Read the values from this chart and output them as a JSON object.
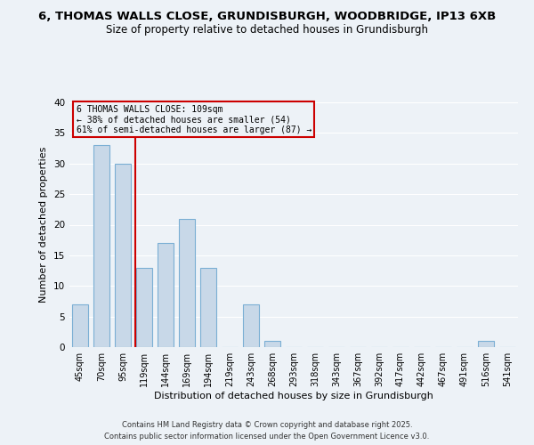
{
  "title1": "6, THOMAS WALLS CLOSE, GRUNDISBURGH, WOODBRIDGE, IP13 6XB",
  "title2": "Size of property relative to detached houses in Grundisburgh",
  "xlabel": "Distribution of detached houses by size in Grundisburgh",
  "ylabel": "Number of detached properties",
  "categories": [
    "45sqm",
    "70sqm",
    "95sqm",
    "119sqm",
    "144sqm",
    "169sqm",
    "194sqm",
    "219sqm",
    "243sqm",
    "268sqm",
    "293sqm",
    "318sqm",
    "343sqm",
    "367sqm",
    "392sqm",
    "417sqm",
    "442sqm",
    "467sqm",
    "491sqm",
    "516sqm",
    "541sqm"
  ],
  "values": [
    7,
    33,
    30,
    13,
    17,
    21,
    13,
    0,
    7,
    1,
    0,
    0,
    0,
    0,
    0,
    0,
    0,
    0,
    0,
    1,
    0
  ],
  "bar_color": "#c8d8e8",
  "bar_edge_color": "#7bafd4",
  "ylim": [
    0,
    40
  ],
  "yticks": [
    0,
    5,
    10,
    15,
    20,
    25,
    30,
    35,
    40
  ],
  "vline_color": "#cc0000",
  "annotation_title": "6 THOMAS WALLS CLOSE: 109sqm",
  "annotation_line2": "← 38% of detached houses are smaller (54)",
  "annotation_line3": "61% of semi-detached houses are larger (87) →",
  "annotation_box_color": "#cc0000",
  "bg_color": "#edf2f7",
  "footer1": "Contains HM Land Registry data © Crown copyright and database right 2025.",
  "footer2": "Contains public sector information licensed under the Open Government Licence v3.0.",
  "title1_fontsize": 9.5,
  "title2_fontsize": 8.5,
  "bar_width": 0.75,
  "grid_color": "#ffffff"
}
